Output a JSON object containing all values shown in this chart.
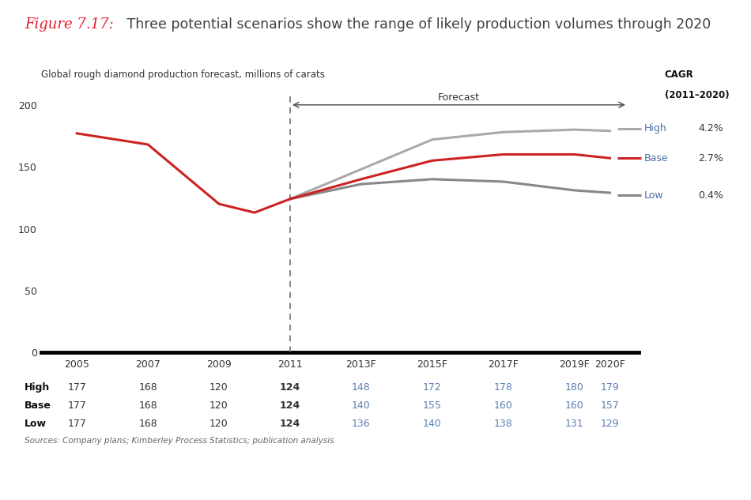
{
  "title_italic": "Figure 7.17:",
  "title_italic_color": "#e8192c",
  "title_rest": " Three potential scenarios show the range of likely production volumes through 2020",
  "title_rest_color": "#404040",
  "subtitle": "Global rough diamond production forecast, millions of carats",
  "cagr_label_line1": "CAGR",
  "cagr_label_line2": "(2011–2020)",
  "forecast_label": "Forecast",
  "source_text": "Sources: Company plans; Kimberley Process Statistics; publication analysis",
  "years_historical": [
    2005,
    2007,
    2009,
    2010,
    2011
  ],
  "years_forecast": [
    2011,
    2013,
    2015,
    2017,
    2019,
    2020
  ],
  "high_historical": [
    177,
    168,
    120,
    113,
    124
  ],
  "high_forecast": [
    124,
    148,
    172,
    178,
    180,
    179
  ],
  "base_forecast": [
    124,
    140,
    155,
    160,
    160,
    157
  ],
  "low_forecast": [
    124,
    136,
    140,
    138,
    131,
    129
  ],
  "color_base": "#cc2222",
  "color_high": "#aaaaaa",
  "color_low": "#888888",
  "color_dark": "#333333",
  "color_blue": "#5b7db1",
  "color_label": "#4a6fa5",
  "table_high": [
    177,
    168,
    120,
    124,
    148,
    172,
    178,
    180,
    179
  ],
  "table_base": [
    177,
    168,
    120,
    124,
    140,
    155,
    160,
    160,
    157
  ],
  "table_low": [
    177,
    168,
    120,
    124,
    136,
    140,
    138,
    131,
    129
  ],
  "cagr_high": "4.2%",
  "cagr_base": "2.7%",
  "cagr_low": "0.4%",
  "ylim": [
    0,
    210
  ],
  "yticks": [
    0,
    50,
    100,
    150,
    200
  ],
  "xlim_left": 2004.0,
  "xlim_right": 2020.8,
  "background": "#ffffff"
}
